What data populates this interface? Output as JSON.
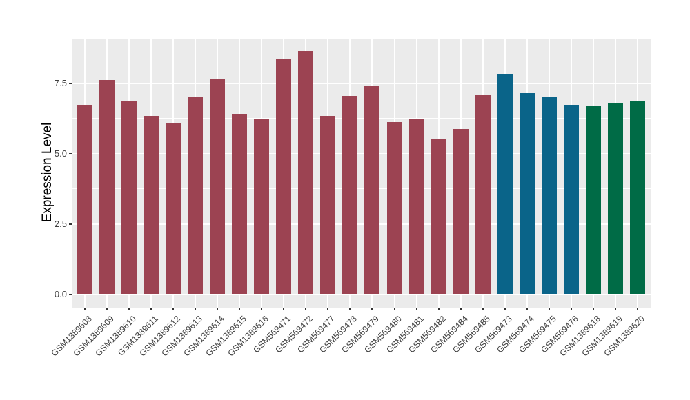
{
  "chart_data": {
    "type": "bar",
    "title": "",
    "xlabel": "",
    "ylabel": "Expression Level",
    "categories": [
      "GSM1389608",
      "GSM1389609",
      "GSM1389610",
      "GSM1389611",
      "GSM1389612",
      "GSM1389613",
      "GSM1389614",
      "GSM1389615",
      "GSM1389616",
      "GSM569471",
      "GSM569472",
      "GSM569477",
      "GSM569478",
      "GSM569479",
      "GSM569480",
      "GSM569481",
      "GSM569482",
      "GSM569484",
      "GSM569485",
      "GSM569473",
      "GSM569474",
      "GSM569475",
      "GSM569476",
      "GSM1389618",
      "GSM1389619",
      "GSM1389620"
    ],
    "values": [
      6.74,
      7.62,
      6.88,
      6.33,
      6.1,
      7.03,
      7.66,
      6.41,
      6.21,
      8.34,
      8.64,
      6.33,
      7.04,
      7.38,
      6.11,
      6.23,
      5.54,
      5.86,
      7.07,
      7.84,
      7.15,
      7.0,
      6.72,
      6.68,
      6.81,
      6.88
    ],
    "bar_groups": [
      "maroon",
      "maroon",
      "maroon",
      "maroon",
      "maroon",
      "maroon",
      "maroon",
      "maroon",
      "maroon",
      "maroon",
      "maroon",
      "maroon",
      "maroon",
      "maroon",
      "maroon",
      "maroon",
      "maroon",
      "maroon",
      "maroon",
      "blue",
      "blue",
      "blue",
      "blue",
      "green",
      "green",
      "green"
    ],
    "palette": {
      "maroon": "#9C4352",
      "blue": "#0A6489",
      "green": "#006B46"
    },
    "panel_background": "#EBEBEB",
    "gridline_color": "#FFFFFF",
    "y_ticks": [
      0.0,
      2.5,
      5.0,
      7.5
    ],
    "y_tick_labels": [
      "0.0",
      "2.5",
      "5.0",
      "7.5"
    ],
    "y_minor_ticks": [
      1.25,
      3.75,
      6.25,
      8.75
    ],
    "ylim": [
      -0.47,
      9.08
    ],
    "grid": "on",
    "legend": "none"
  }
}
